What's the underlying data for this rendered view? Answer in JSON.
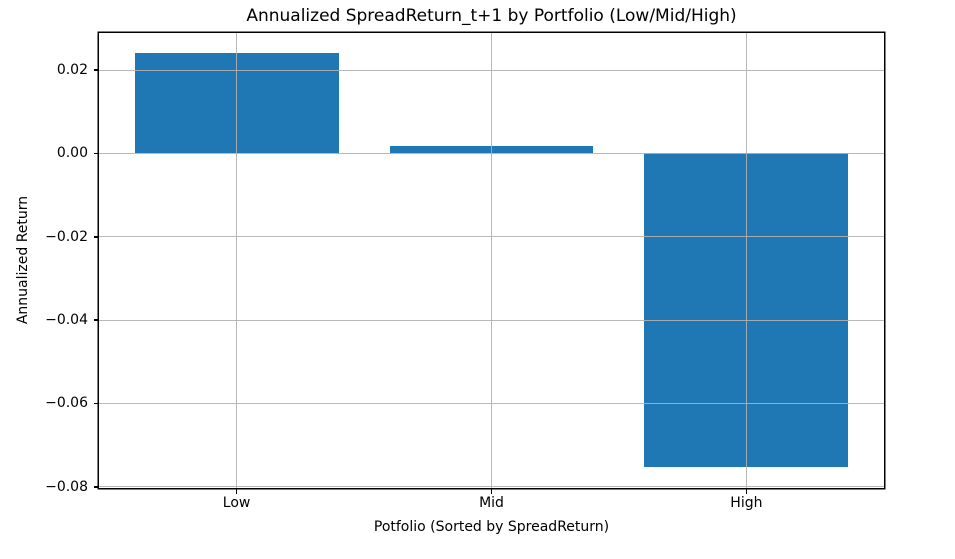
{
  "chart_data": {
    "type": "bar",
    "title": "Annualized SpreadReturn_t+1 by Portfolio (Low/Mid/High)",
    "xlabel": "Potfolio (Sorted by SpreadReturn)",
    "ylabel": "Annualized Return",
    "categories": [
      "Low",
      "Mid",
      "High"
    ],
    "values": [
      0.024,
      0.0017,
      -0.0752
    ],
    "xtick_positions": [
      0,
      1,
      2
    ],
    "yticks": [
      0.02,
      0.0,
      -0.02,
      -0.04,
      -0.06,
      -0.08
    ],
    "ytick_labels": [
      "0.02",
      "0.00",
      "−0.02",
      "−0.04",
      "−0.06",
      "−0.08"
    ],
    "xlim": [
      -0.54,
      2.54
    ],
    "ylim": [
      -0.0803,
      0.0289
    ],
    "bar_width": 0.8,
    "bar_color": "#1f77b4",
    "grid": true,
    "grid_color": "#b0b0b0",
    "spine_color": "#000000",
    "background": "#ffffff",
    "legend": null
  }
}
